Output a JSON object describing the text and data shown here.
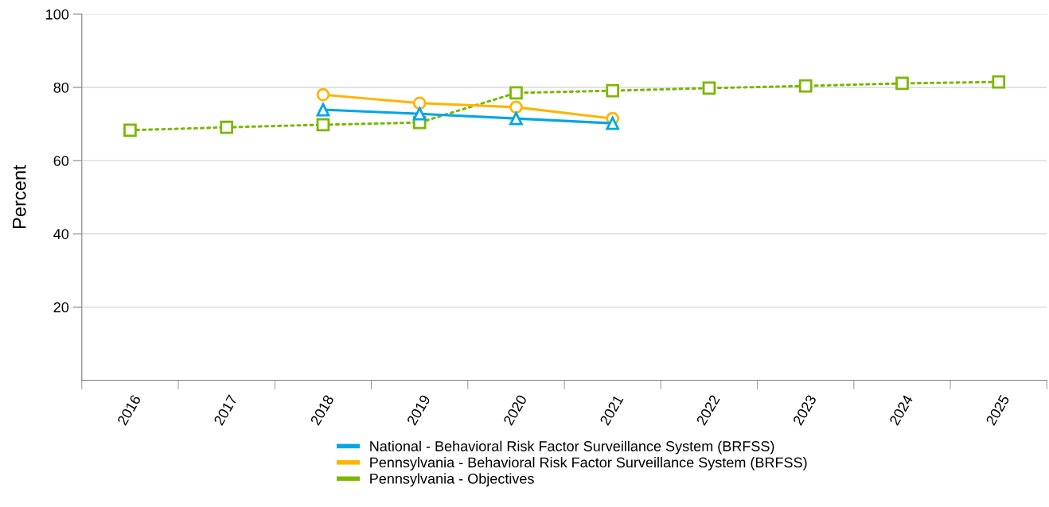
{
  "chart_data": {
    "type": "line",
    "ylabel": "Percent",
    "categories": [
      "2016",
      "2017",
      "2018",
      "2019",
      "2020",
      "2021",
      "2022",
      "2023",
      "2024",
      "2025"
    ],
    "series": [
      {
        "name": "National - Behavioral Risk Factor Surveillance System (BRFSS)",
        "color": "#00a6e6",
        "marker": "triangle",
        "line_style": "solid",
        "values": [
          null,
          null,
          73.9,
          72.8,
          71.5,
          70.2,
          null,
          null,
          null,
          null
        ]
      },
      {
        "name": "Pennsylvania - Behavioral Risk Factor Surveillance System (BRFSS)",
        "color": "#ffb400",
        "marker": "circle",
        "line_style": "solid",
        "values": [
          null,
          null,
          78.0,
          75.7,
          74.6,
          71.5,
          null,
          null,
          null,
          null
        ]
      },
      {
        "name": "Pennsylvania - Objectives",
        "color": "#7ab800",
        "marker": "square",
        "line_style": "dotted",
        "values": [
          68.3,
          69.1,
          69.8,
          70.4,
          78.5,
          79.1,
          79.8,
          80.4,
          81.1,
          81.5
        ]
      }
    ],
    "ylim": [
      0,
      100
    ],
    "yticks": [
      20,
      40,
      60,
      80,
      100
    ],
    "grid": "y",
    "legend": "bottom"
  }
}
